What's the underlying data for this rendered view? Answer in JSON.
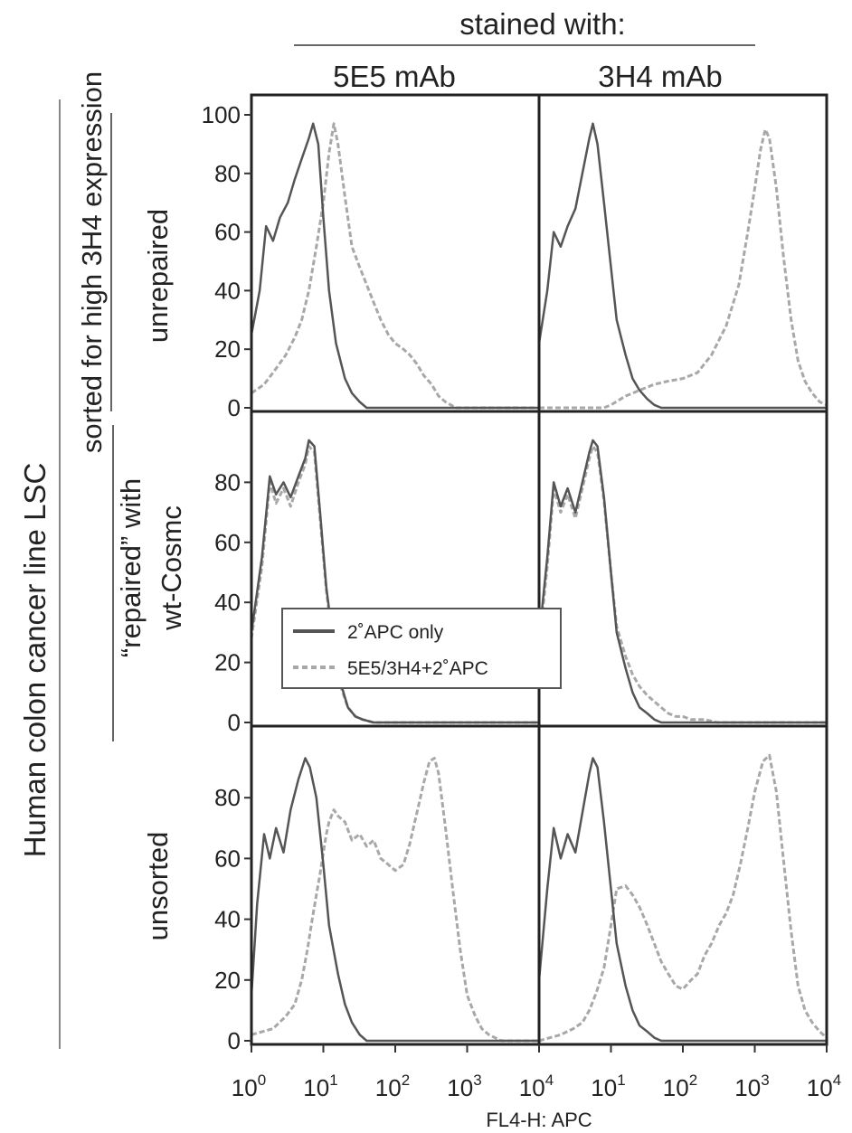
{
  "header": {
    "stained_with": "stained with:"
  },
  "columns": [
    "5E5 mAb",
    "3H4 mAb"
  ],
  "left": {
    "outer": "Human colon cancer line  LSC",
    "sorted": "sorted for high 3H4 expression",
    "rows": [
      {
        "lines": [
          "unrepaired"
        ]
      },
      {
        "lines": [
          "“repaired” with",
          "wt-Cosmc"
        ]
      },
      {
        "lines": [
          "unsorted"
        ]
      }
    ]
  },
  "xaxis": {
    "label": "FL4-H: APC",
    "ticks": [
      {
        "base": "10",
        "exp": "0"
      },
      {
        "base": "10",
        "exp": "1"
      },
      {
        "base": "10",
        "exp": "2"
      },
      {
        "base": "10",
        "exp": "3"
      },
      {
        "base": "10",
        "exp": "4"
      }
    ]
  },
  "yticks_top": [
    "100",
    "80",
    "60",
    "40",
    "20",
    "0"
  ],
  "yticks_other": [
    "80",
    "60",
    "40",
    "20",
    "0"
  ],
  "legend": {
    "items": [
      {
        "label": "2˚APC only",
        "style": "solid"
      },
      {
        "label": "5E5/3H4+2˚APC",
        "style": "dashed"
      }
    ]
  },
  "colors": {
    "control": "#555555",
    "stained": "#a8a8a8",
    "frame": "#222222"
  },
  "chart_data": {
    "type": "line",
    "x_scale": "log",
    "xlim": [
      1,
      10000
    ],
    "ylim": [
      0,
      100
    ],
    "panels": [
      {
        "row": "unrepaired",
        "column": "5E5 mAb",
        "series": [
          {
            "style": "solid",
            "x": [
              1,
              1.3,
              1.6,
              2,
              2.5,
              3.2,
              4,
              5,
              6.3,
              7.2,
              8.5,
              10,
              12,
              15,
              20,
              25,
              32,
              40,
              60,
              100,
              10000
            ],
            "y": [
              25,
              40,
              62,
              57,
              65,
              70,
              78,
              85,
              92,
              97,
              90,
              65,
              40,
              22,
              10,
              5,
              2,
              0,
              0,
              0,
              0
            ]
          },
          {
            "style": "dashed",
            "x": [
              1,
              1.5,
              2,
              3,
              4,
              5,
              6.3,
              8,
              10,
              12,
              14,
              16,
              20,
              25,
              32,
              40,
              50,
              63,
              80,
              100,
              130,
              160,
              200,
              250,
              320,
              400,
              500,
              700,
              10000
            ],
            "y": [
              5,
              8,
              12,
              18,
              24,
              30,
              40,
              55,
              70,
              87,
              97,
              90,
              72,
              55,
              48,
              42,
              36,
              30,
              25,
              22,
              20,
              18,
              15,
              11,
              8,
              4,
              2,
              0,
              0
            ]
          }
        ]
      },
      {
        "row": "unrepaired",
        "column": "3H4 mAb",
        "series": [
          {
            "style": "solid",
            "x": [
              1,
              1.3,
              1.6,
              2,
              2.5,
              3.2,
              4,
              5,
              5.6,
              6.5,
              8,
              10,
              12,
              16,
              20,
              25,
              32,
              40,
              50,
              60,
              10000
            ],
            "y": [
              22,
              40,
              60,
              55,
              62,
              68,
              80,
              92,
              97,
              90,
              70,
              48,
              30,
              18,
              10,
              6,
              3,
              1,
              0,
              0,
              0
            ]
          },
          {
            "style": "dashed",
            "x": [
              1,
              8,
              10,
              16,
              25,
              40,
              60,
              100,
              160,
              250,
              400,
              600,
              800,
              1000,
              1200,
              1400,
              1600,
              2000,
              2500,
              3200,
              4000,
              5000,
              6300,
              8000,
              10000
            ],
            "y": [
              0,
              0,
              1,
              4,
              6,
              8,
              9,
              10,
              12,
              18,
              28,
              42,
              60,
              75,
              88,
              95,
              92,
              75,
              52,
              30,
              16,
              9,
              5,
              2,
              1
            ]
          }
        ]
      },
      {
        "row": "repaired",
        "column": "5E5 mAb",
        "series": [
          {
            "style": "solid",
            "x": [
              1,
              1.4,
              1.8,
              2.2,
              2.8,
              3.5,
              4.5,
              5.6,
              6.3,
              7.5,
              9,
              11,
              14,
              18,
              22,
              28,
              35,
              50,
              70,
              100,
              10000
            ],
            "y": [
              30,
              55,
              82,
              76,
              80,
              75,
              82,
              88,
              94,
              92,
              70,
              45,
              25,
              12,
              5,
              2,
              1,
              0,
              0,
              0,
              0
            ]
          },
          {
            "style": "dashed",
            "x": [
              1,
              1.4,
              1.8,
              2.2,
              2.8,
              3.5,
              4.5,
              5.6,
              6.3,
              7.5,
              9,
              11,
              14,
              18,
              22,
              28,
              35,
              50,
              70,
              100,
              10000
            ],
            "y": [
              28,
              52,
              80,
              73,
              78,
              72,
              80,
              86,
              92,
              90,
              68,
              44,
              24,
              11,
              5,
              2,
              1,
              0,
              0,
              0,
              0
            ]
          }
        ]
      },
      {
        "row": "repaired",
        "column": "3H4 mAb",
        "series": [
          {
            "style": "solid",
            "x": [
              1,
              1.3,
              1.6,
              2,
              2.5,
              3.2,
              4,
              5,
              5.6,
              6.5,
              8,
              10,
              12,
              16,
              20,
              25,
              32,
              40,
              50,
              63,
              80,
              10000
            ],
            "y": [
              28,
              55,
              80,
              72,
              78,
              70,
              80,
              90,
              94,
              92,
              75,
              50,
              30,
              18,
              10,
              5,
              3,
              1,
              0,
              0,
              0,
              0
            ]
          },
          {
            "style": "dashed",
            "x": [
              1,
              1.3,
              1.6,
              2,
              2.5,
              3.2,
              4,
              5,
              5.6,
              6.5,
              8,
              10,
              12,
              16,
              20,
              25,
              32,
              40,
              50,
              63,
              80,
              100,
              130,
              160,
              200,
              300,
              10000
            ],
            "y": [
              26,
              52,
              78,
              70,
              76,
              68,
              78,
              88,
              92,
              90,
              74,
              50,
              32,
              22,
              16,
              12,
              9,
              7,
              5,
              3,
              2,
              2,
              1,
              1,
              1,
              0,
              0
            ]
          }
        ]
      },
      {
        "row": "unsorted",
        "column": "5E5 mAb",
        "series": [
          {
            "style": "solid",
            "x": [
              1,
              1.2,
              1.5,
              1.8,
              2.2,
              2.8,
              3.5,
              4.5,
              5.6,
              6.5,
              8,
              10,
              12,
              16,
              20,
              25,
              32,
              40,
              60,
              100,
              10000
            ],
            "y": [
              15,
              45,
              68,
              60,
              70,
              62,
              76,
              86,
              93,
              90,
              80,
              58,
              38,
              22,
              12,
              6,
              2,
              0,
              0,
              0,
              0
            ]
          },
          {
            "style": "dashed",
            "x": [
              1,
              2,
              3,
              4,
              5,
              6,
              7,
              8,
              9,
              10,
              11,
              12,
              14,
              16,
              20,
              25,
              32,
              40,
              50,
              63,
              80,
              100,
              130,
              160,
              200,
              250,
              300,
              350,
              400,
              500,
              630,
              800,
              1000,
              1300,
              1600,
              2000,
              3000,
              10000
            ],
            "y": [
              2,
              4,
              8,
              12,
              20,
              30,
              40,
              48,
              55,
              62,
              68,
              72,
              76,
              74,
              72,
              66,
              68,
              64,
              66,
              60,
              58,
              56,
              58,
              65,
              75,
              85,
              92,
              93,
              88,
              70,
              50,
              30,
              15,
              8,
              4,
              2,
              0,
              0
            ]
          }
        ]
      },
      {
        "row": "unsorted",
        "column": "3H4 mAb",
        "series": [
          {
            "style": "solid",
            "x": [
              1,
              1.3,
              1.6,
              2,
              2.5,
              3.2,
              4,
              5,
              5.6,
              6.5,
              8,
              10,
              12,
              16,
              20,
              25,
              32,
              40,
              50,
              63,
              80,
              10000
            ],
            "y": [
              20,
              50,
              70,
              60,
              68,
              62,
              75,
              88,
              93,
              90,
              72,
              50,
              32,
              18,
              10,
              5,
              3,
              1,
              0,
              0,
              0,
              0
            ]
          },
          {
            "style": "dashed",
            "x": [
              1,
              2,
              3,
              4,
              5,
              6.3,
              8,
              10,
              12,
              16,
              20,
              25,
              32,
              40,
              50,
              63,
              80,
              100,
              130,
              160,
              200,
              250,
              320,
              400,
              500,
              630,
              800,
              1000,
              1300,
              1600,
              2000,
              2500,
              3200,
              4000,
              5000,
              6300,
              8000,
              10000
            ],
            "y": [
              0,
              2,
              4,
              6,
              10,
              16,
              24,
              38,
              50,
              51,
              48,
              44,
              38,
              32,
              26,
              22,
              18,
              17,
              20,
              22,
              28,
              32,
              38,
              42,
              48,
              58,
              70,
              82,
              92,
              94,
              82,
              60,
              36,
              18,
              10,
              6,
              3,
              1
            ]
          }
        ]
      }
    ]
  }
}
